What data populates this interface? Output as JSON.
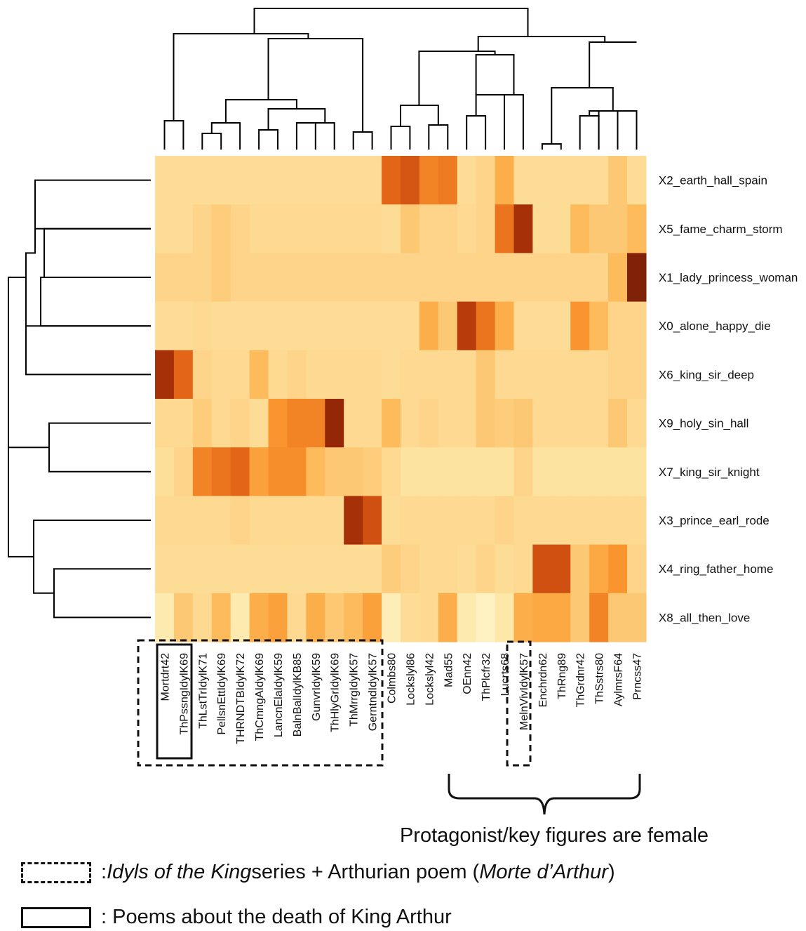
{
  "chart_data": {
    "type": "heatmap",
    "columns": [
      "Mortdrt42",
      "ThPssngIdylK69",
      "ThLstTrIdylK71",
      "PellsnEttIdylK69",
      "THRNDTBIdylK72",
      "ThCmngAIdylK69",
      "LancnElaIdylK59",
      "BalnBalIdylKB85",
      "GunvrIdylK59",
      "ThHlyGrIdylK69",
      "ThMrrgIdylK57",
      "GerntndIdylK57",
      "Colmbs80",
      "Lockslyl86",
      "Lockslyl42",
      "Mad55",
      "OEnn42",
      "ThPlcfr32",
      "Lucrts68",
      "MelnVivIdylK57",
      "Enchrdn62",
      "ThRng89",
      "ThGrdnr42",
      "ThSstrs80",
      "AylmrsF64",
      "Prncss47"
    ],
    "rows": [
      "X2_earth_hall_spain",
      "X5_fame_charm_storm",
      "X1_lady_princess_woman",
      "X0_alone_happy_die",
      "X6_king_sir_deep",
      "X9_holy_sin_hall",
      "X7_king_sir_knight",
      "X3_prince_earl_rode",
      "X4_ring_father_home",
      "X8_all_then_love"
    ],
    "values": [
      [
        0.2,
        0.2,
        0.2,
        0.2,
        0.2,
        0.2,
        0.2,
        0.2,
        0.2,
        0.2,
        0.2,
        0.2,
        0.65,
        0.7,
        0.55,
        0.58,
        0.2,
        0.25,
        0.4,
        0.2,
        0.2,
        0.2,
        0.2,
        0.2,
        0.3,
        0.2
      ],
      [
        0.2,
        0.2,
        0.25,
        0.28,
        0.25,
        0.22,
        0.22,
        0.22,
        0.22,
        0.22,
        0.22,
        0.22,
        0.2,
        0.3,
        0.25,
        0.25,
        0.22,
        0.25,
        0.6,
        0.85,
        0.2,
        0.2,
        0.35,
        0.3,
        0.3,
        0.35
      ],
      [
        0.25,
        0.25,
        0.25,
        0.28,
        0.25,
        0.25,
        0.25,
        0.25,
        0.25,
        0.25,
        0.25,
        0.25,
        0.25,
        0.25,
        0.25,
        0.25,
        0.25,
        0.25,
        0.25,
        0.25,
        0.25,
        0.25,
        0.25,
        0.25,
        0.35,
        0.95
      ],
      [
        0.2,
        0.2,
        0.22,
        0.2,
        0.2,
        0.2,
        0.2,
        0.2,
        0.2,
        0.2,
        0.2,
        0.2,
        0.2,
        0.2,
        0.4,
        0.3,
        0.8,
        0.6,
        0.4,
        0.2,
        0.2,
        0.2,
        0.5,
        0.35,
        0.25,
        0.25
      ],
      [
        0.85,
        0.65,
        0.25,
        0.22,
        0.22,
        0.35,
        0.22,
        0.25,
        0.22,
        0.22,
        0.22,
        0.22,
        0.2,
        0.22,
        0.22,
        0.22,
        0.22,
        0.3,
        0.22,
        0.22,
        0.22,
        0.22,
        0.22,
        0.22,
        0.25,
        0.25
      ],
      [
        0.22,
        0.22,
        0.28,
        0.22,
        0.25,
        0.2,
        0.5,
        0.55,
        0.55,
        0.9,
        0.22,
        0.22,
        0.35,
        0.22,
        0.25,
        0.22,
        0.22,
        0.3,
        0.28,
        0.3,
        0.22,
        0.22,
        0.22,
        0.22,
        0.3,
        0.22
      ],
      [
        0.18,
        0.25,
        0.55,
        0.6,
        0.65,
        0.45,
        0.52,
        0.52,
        0.35,
        0.3,
        0.3,
        0.28,
        0.22,
        0.15,
        0.15,
        0.15,
        0.15,
        0.15,
        0.15,
        0.25,
        0.15,
        0.15,
        0.15,
        0.15,
        0.15,
        0.15
      ],
      [
        0.22,
        0.22,
        0.22,
        0.22,
        0.25,
        0.22,
        0.22,
        0.22,
        0.22,
        0.22,
        0.85,
        0.72,
        0.2,
        0.22,
        0.22,
        0.22,
        0.22,
        0.22,
        0.25,
        0.22,
        0.22,
        0.22,
        0.22,
        0.22,
        0.22,
        0.22
      ],
      [
        0.2,
        0.2,
        0.2,
        0.2,
        0.2,
        0.2,
        0.2,
        0.2,
        0.2,
        0.2,
        0.2,
        0.2,
        0.28,
        0.25,
        0.22,
        0.22,
        0.2,
        0.25,
        0.2,
        0.22,
        0.72,
        0.72,
        0.3,
        0.42,
        0.5,
        0.25
      ],
      [
        0.1,
        0.3,
        0.22,
        0.35,
        0.1,
        0.4,
        0.45,
        0.22,
        0.4,
        0.3,
        0.35,
        0.45,
        0.08,
        0.2,
        0.22,
        0.4,
        0.1,
        0.05,
        0.12,
        0.4,
        0.42,
        0.42,
        0.3,
        0.55,
        0.3,
        0.3
      ]
    ],
    "color_scale": [
      "#fff8d4",
      "#fde7a6",
      "#fdd48a",
      "#fdb551",
      "#f9942e",
      "#e86d1b",
      "#c9470e",
      "#9d2a07",
      "#6b1d08"
    ],
    "col_dendrogram": [
      [
        [
          0,
          1
        ],
        [
          255,
          172,
          255,
          213
        ]
      ],
      [
        [
          2,
          3
        ],
        [
          287,
          190,
          287,
          213
        ]
      ],
      [
        [
          4,
          5
        ],
        [
          338,
          175,
          338,
          213
        ]
      ],
      [
        [
          6,
          7
        ],
        [
          381,
          185,
          381,
          213
        ]
      ],
      [
        [
          8,
          9
        ],
        [
          433,
          175,
          433,
          213
        ]
      ],
      [
        [
          10,
          11
        ],
        [
          514,
          188,
          514,
          213
        ]
      ],
      [
        [
          12,
          13
        ],
        [
          567,
          180,
          567,
          213
        ]
      ],
      [
        [
          14,
          15
        ],
        [
          621,
          178,
          621,
          213
        ]
      ],
      [
        [
          16,
          17
        ],
        [
          673,
          165,
          673,
          213
        ]
      ],
      [
        [
          19,
          18
        ],
        [
          725,
          135,
          725,
          213
        ]
      ],
      [
        [
          20,
          21
        ],
        [
          780,
          205,
          780,
          213
        ]
      ],
      [
        [
          22,
          23
        ],
        [
          834,
          165,
          834,
          213
        ]
      ]
    ],
    "row_dendrogram_note": ""
  },
  "legend": {
    "dashed_text_pre": ": ",
    "dashed_italic_1": "Idyls of the King",
    "dashed_text_mid": " series + Arthurian poem (",
    "dashed_italic_2": "Morte d’Arthur",
    "dashed_text_post": ")",
    "solid_text": ": Poems about the death of King Arthur"
  },
  "annotation": "Protagonist/key figures are female"
}
